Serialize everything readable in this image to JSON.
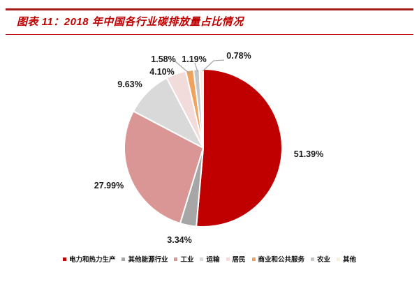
{
  "header": {
    "title": "图表 11：2018 年中国各行业碳排放量占比情况",
    "accent_color": "#C00000"
  },
  "chart_data": {
    "type": "pie",
    "title": "2018 年中国各行业碳排放量占比情况",
    "value_unit": "%",
    "start_angle_deg": 0,
    "direction": "clockwise",
    "legend_position": "bottom",
    "slices": [
      {
        "label": "电力和热力生产",
        "value": 51.39,
        "display": "51.39%",
        "color": "#C00000"
      },
      {
        "label": "其他能源行业",
        "value": 3.34,
        "display": "3.34%",
        "color": "#A6A6A6"
      },
      {
        "label": "工业",
        "value": 27.99,
        "display": "27.99%",
        "color": "#D99694"
      },
      {
        "label": "运输",
        "value": 9.63,
        "display": "9.63%",
        "color": "#D9D9D9"
      },
      {
        "label": "居民",
        "value": 4.1,
        "display": "4.10%",
        "color": "#F2DCDB"
      },
      {
        "label": "商业和公共服务",
        "value": 1.58,
        "display": "1.58%",
        "color": "#F0A35E"
      },
      {
        "label": "农业",
        "value": 1.19,
        "display": "1.19%",
        "color": "#C4C6C8"
      },
      {
        "label": "其他",
        "value": 0.78,
        "display": "0.78%",
        "color": "#F8EDE1"
      }
    ]
  }
}
